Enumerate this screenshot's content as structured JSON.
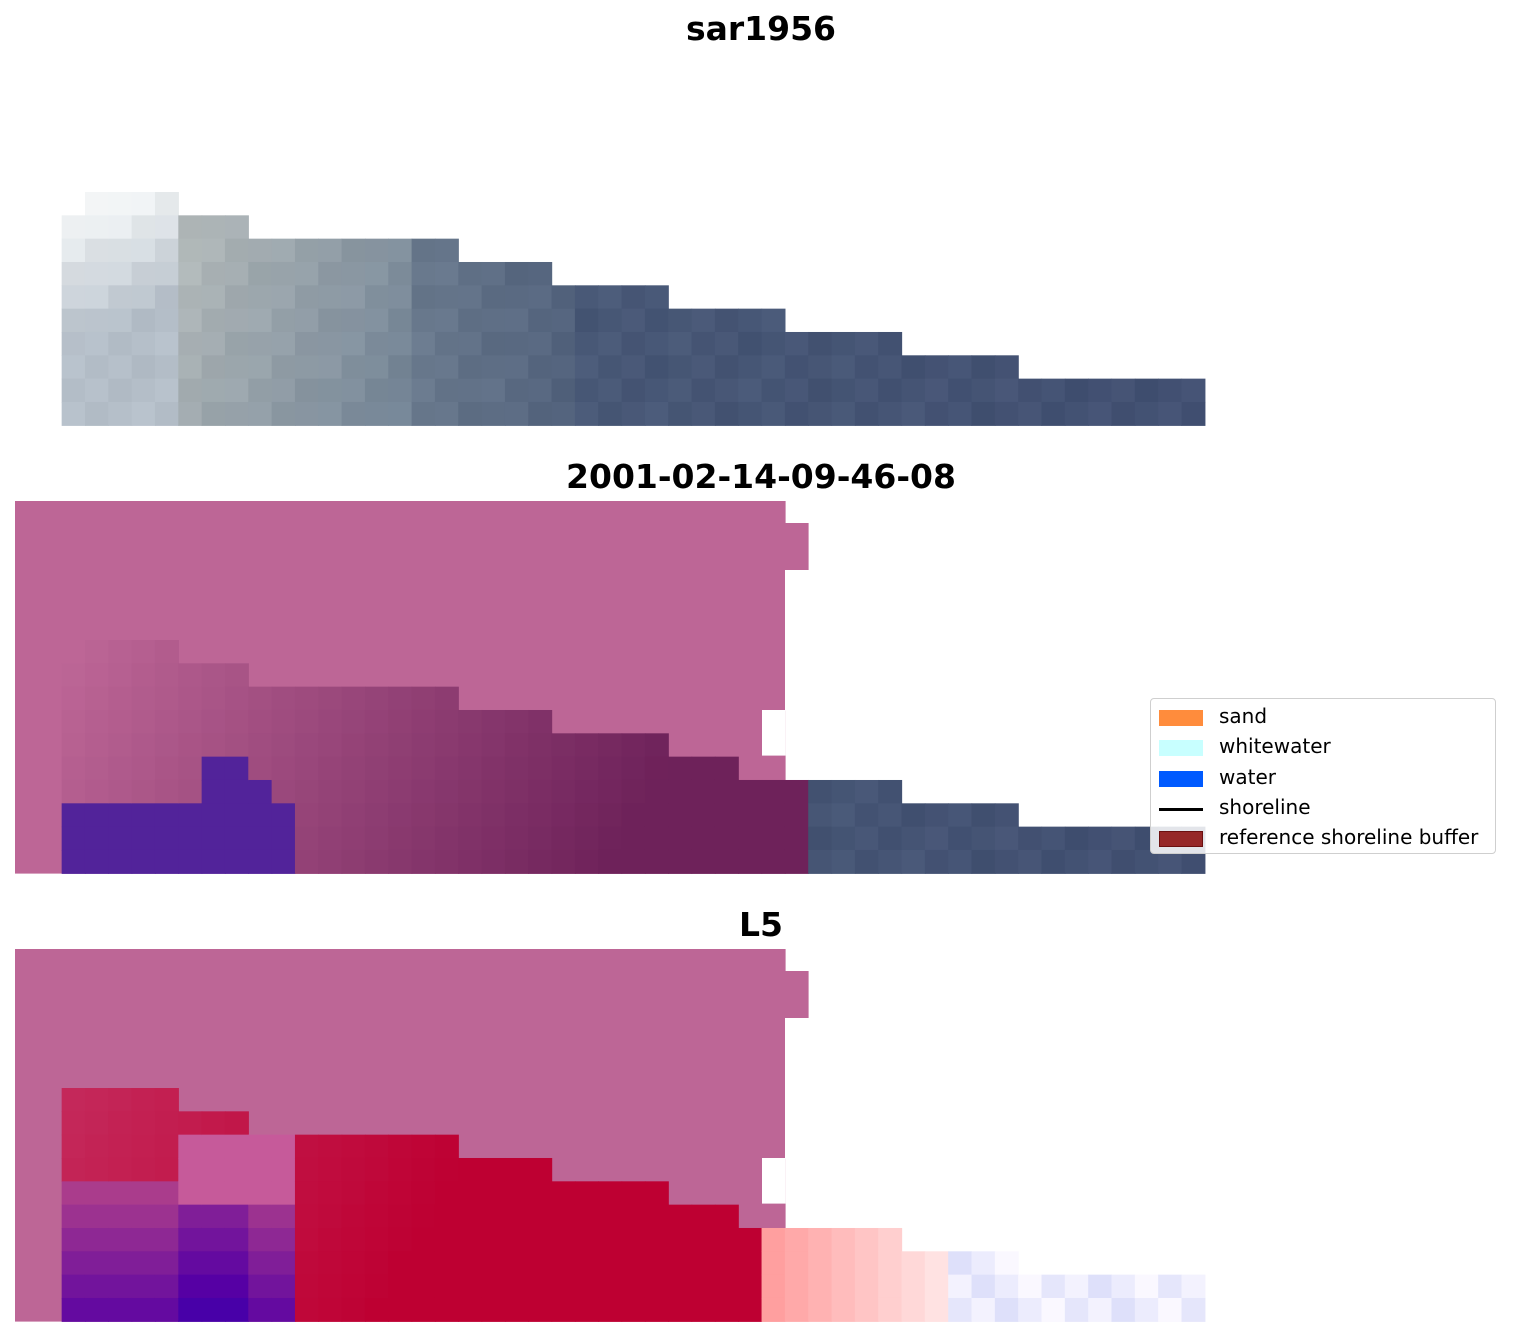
{
  "chart_data": [
    {
      "type": "heatmap",
      "title": "sar1956",
      "description_of_layer": "RGB satellite image tile",
      "legend": null
    },
    {
      "type": "heatmap",
      "title": "2001-02-14-09-46-08",
      "legend": null
    },
    {
      "type": "heatmap",
      "title": "L5",
      "legend": null
    }
  ],
  "legend": {
    "placement": "right",
    "items": [
      {
        "label": "sand",
        "color": "#ff8c3c",
        "kind": "patch"
      },
      {
        "label": "whitewater",
        "color": "#c8ffff",
        "kind": "patch"
      },
      {
        "label": "water",
        "color": "#005aff",
        "kind": "patch"
      },
      {
        "label": "shoreline",
        "color": "#000000",
        "kind": "line"
      },
      {
        "label": "reference shoreline buffer",
        "color": "#962828",
        "kind": "patch-outlined"
      }
    ]
  },
  "colors": {
    "buffer_overlay": "#bd6696",
    "sea_dark": "#475877",
    "water_class": "#52239a",
    "sand_red": "#bf1540"
  }
}
